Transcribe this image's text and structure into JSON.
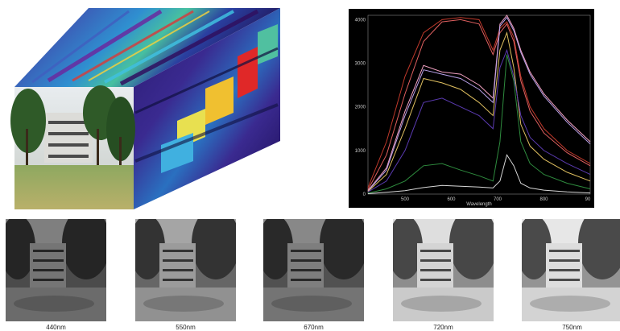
{
  "plot": {
    "xlabel": "Wavelength",
    "x_ticks": [
      "500",
      "600",
      "700",
      "800",
      "90"
    ],
    "y_ticks": [
      "0",
      "1000",
      "2000",
      "3000",
      "4000"
    ]
  },
  "bands": [
    {
      "label": "440nm",
      "brightness": 0.35
    },
    {
      "label": "550nm",
      "brightness": 0.55
    },
    {
      "label": "670nm",
      "brightness": 0.4
    },
    {
      "label": "720nm",
      "brightness": 0.85
    },
    {
      "label": "750nm",
      "brightness": 0.9
    }
  ],
  "chart_data": {
    "type": "line",
    "xlabel": "Wavelength",
    "ylim": [
      0,
      4100
    ],
    "xlim": [
      420,
      900
    ],
    "x": [
      420,
      460,
      500,
      540,
      580,
      620,
      660,
      690,
      705,
      720,
      735,
      750,
      770,
      800,
      850,
      900
    ],
    "series": [
      {
        "color": "#c0392b",
        "values": [
          150,
          1200,
          2700,
          3700,
          4000,
          4050,
          4000,
          3300,
          3800,
          3950,
          3600,
          2700,
          2000,
          1500,
          1000,
          700
        ]
      },
      {
        "color": "#e06060",
        "values": [
          100,
          900,
          2300,
          3500,
          3950,
          4000,
          3900,
          3200,
          3700,
          3900,
          3500,
          2600,
          1900,
          1400,
          950,
          650
        ]
      },
      {
        "color": "#f0a0c0",
        "values": [
          80,
          600,
          1900,
          2950,
          2800,
          2750,
          2500,
          2200,
          3900,
          4100,
          3800,
          3300,
          2800,
          2300,
          1700,
          1200
        ]
      },
      {
        "color": "#b8a0e8",
        "values": [
          70,
          550,
          1800,
          2850,
          2750,
          2650,
          2400,
          2100,
          3850,
          4050,
          3750,
          3250,
          2750,
          2250,
          1650,
          1150
        ]
      },
      {
        "color": "#e0c060",
        "values": [
          60,
          450,
          1500,
          2650,
          2550,
          2400,
          2100,
          1800,
          3300,
          3700,
          2900,
          1600,
          1100,
          800,
          500,
          300
        ]
      },
      {
        "color": "#5a3ab0",
        "values": [
          50,
          300,
          1000,
          2100,
          2200,
          2000,
          1800,
          1500,
          2900,
          3300,
          2700,
          1800,
          1300,
          1000,
          700,
          450
        ]
      },
      {
        "color": "#2e8b3e",
        "values": [
          20,
          120,
          300,
          650,
          700,
          550,
          420,
          300,
          1200,
          3200,
          2600,
          1200,
          700,
          450,
          250,
          120
        ]
      },
      {
        "color": "#d8d8d8",
        "values": [
          10,
          40,
          80,
          150,
          200,
          180,
          160,
          140,
          300,
          900,
          650,
          250,
          140,
          90,
          50,
          25
        ]
      }
    ]
  }
}
